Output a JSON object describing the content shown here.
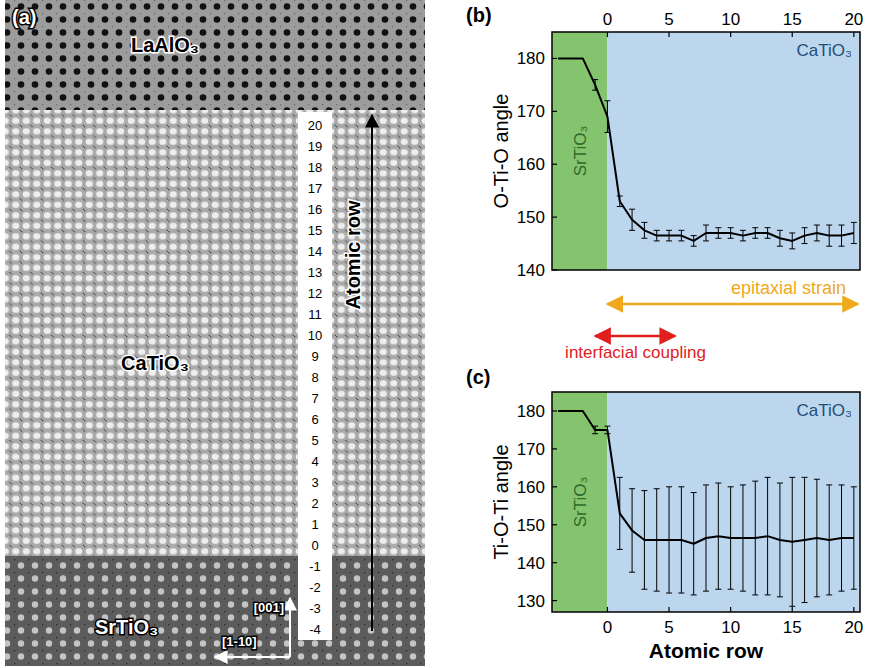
{
  "image_panel": {
    "panel_label": "(a)",
    "layers": [
      {
        "label": "LaAlO₃"
      },
      {
        "label": "CaTiO₃"
      },
      {
        "label": "SrTiO₃"
      }
    ],
    "row_axis_title": "Atomic row",
    "rows": [
      20,
      19,
      18,
      17,
      16,
      15,
      14,
      13,
      12,
      11,
      10,
      9,
      8,
      7,
      6,
      5,
      4,
      3,
      2,
      1,
      0,
      -1,
      -2,
      -3,
      -4
    ],
    "directions": [
      "[001]",
      "[1-10]"
    ]
  },
  "chart_data": [
    {
      "type": "line",
      "panel_label": "(b)",
      "y_label": "O-Ti-O angle",
      "x": [
        -4,
        -3,
        -2,
        -1,
        0,
        1,
        2,
        3,
        4,
        5,
        6,
        7,
        8,
        9,
        10,
        11,
        12,
        13,
        14,
        15,
        16,
        17,
        18,
        19,
        20
      ],
      "series": [
        {
          "color": "#000000",
          "values": [
            180,
            180,
            180,
            175,
            169,
            153,
            149.5,
            147.5,
            146.5,
            146.5,
            146.5,
            145.5,
            147,
            147,
            147,
            146.5,
            147,
            147,
            146,
            145.5,
            146.5,
            147,
            146.5,
            146.5,
            147
          ],
          "errors": [
            null,
            null,
            null,
            1.0,
            3.0,
            1.0,
            2.0,
            1.5,
            1.0,
            1.0,
            1.0,
            1.0,
            1.5,
            1.0,
            1.0,
            1.0,
            1.0,
            1.0,
            1.5,
            1.5,
            1.5,
            1.5,
            2.0,
            2.0,
            2.0
          ]
        }
      ],
      "xlim": [
        -4.5,
        20.5
      ],
      "ylim": [
        140,
        185
      ],
      "xticks": [
        0,
        5,
        10,
        15,
        20
      ],
      "yticks": [
        140,
        150,
        160,
        170,
        180
      ],
      "grid": false,
      "regions": [
        {
          "label": "SrTiO₃",
          "from": -4.5,
          "to": 0,
          "color": "#84c46e"
        },
        {
          "label": "CaTiO₃",
          "from": 0,
          "to": 20.5,
          "color": "#bcd6ee"
        }
      ]
    },
    {
      "type": "line",
      "panel_label": "(c)",
      "y_label": "Ti-O-Ti angle",
      "x_label": "Atomic row",
      "x": [
        -4,
        -3,
        -2,
        -1,
        0,
        1,
        2,
        3,
        4,
        5,
        6,
        7,
        8,
        9,
        10,
        11,
        12,
        13,
        14,
        15,
        16,
        17,
        18,
        19,
        20
      ],
      "series": [
        {
          "color": "#000000",
          "values": [
            180,
            180,
            180,
            175,
            175,
            153,
            148.5,
            146,
            146,
            146,
            146,
            145,
            146.5,
            147,
            146.5,
            146.5,
            146.5,
            147,
            146,
            145.5,
            146,
            146.5,
            146,
            146.5,
            146.5
          ],
          "errors": [
            null,
            null,
            null,
            1.0,
            1.0,
            9.5,
            11,
            13,
            13.5,
            14,
            14,
            13.5,
            14,
            14,
            13.5,
            14,
            15,
            15.5,
            15,
            17,
            16.5,
            15.5,
            14.5,
            14,
            13.5
          ]
        }
      ],
      "xlim": [
        -4.5,
        20.5
      ],
      "ylim": [
        127,
        185
      ],
      "xticks": [
        0,
        5,
        10,
        15,
        20
      ],
      "yticks": [
        130,
        140,
        150,
        160,
        170,
        180
      ],
      "grid": false,
      "regions": [
        {
          "label": "SrTiO₃",
          "from": -4.5,
          "to": 0,
          "color": "#84c46e"
        },
        {
          "label": "CaTiO₃",
          "from": 0,
          "to": 20.5,
          "color": "#bcd6ee"
        }
      ]
    }
  ],
  "annotations": [
    {
      "text": "epitaxial strain",
      "from": 0,
      "to": 20.5,
      "color": "#f0a81c"
    },
    {
      "text": "interfacial coupling",
      "from": -1,
      "to": 5.5,
      "color": "#e0201e"
    }
  ]
}
